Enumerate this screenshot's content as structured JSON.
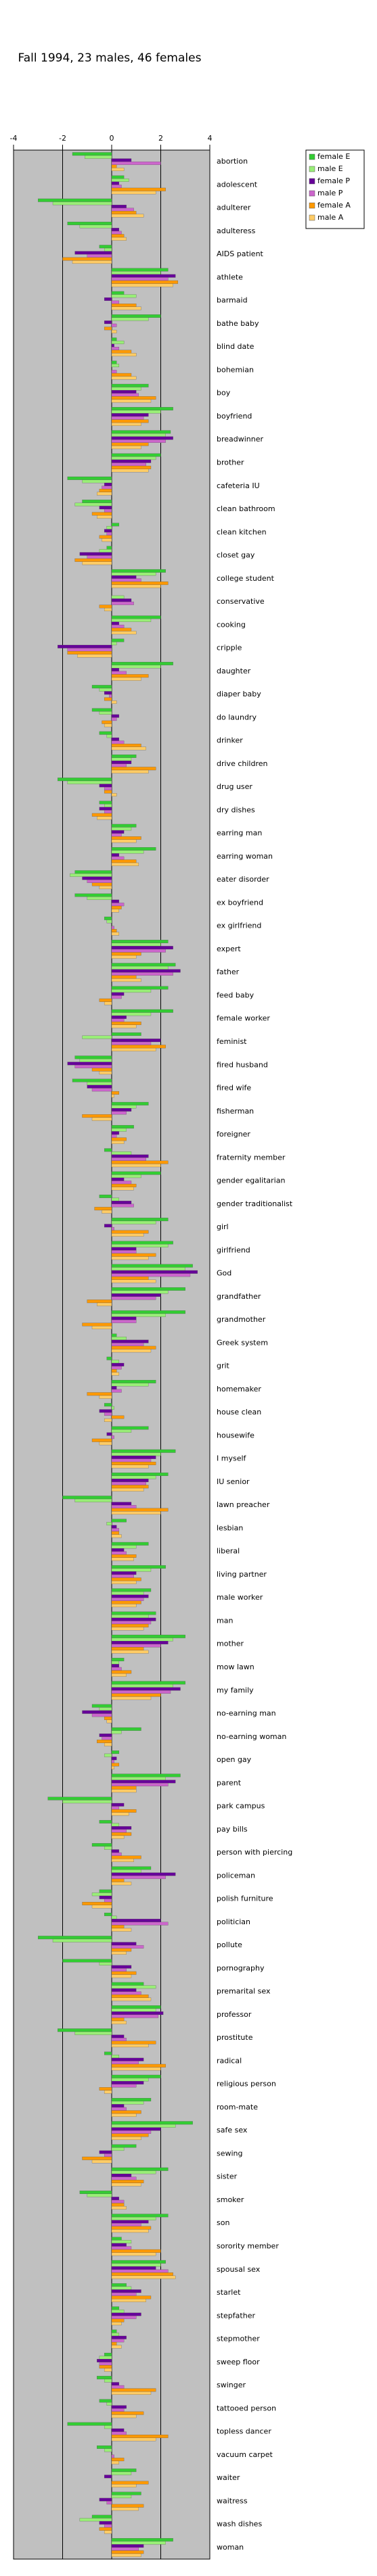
{
  "chart_data": {
    "type": "hbar",
    "title": "Fall 1994, 23 males, 46 females",
    "categories": [
      "abortion",
      "adolescent",
      "adulterer",
      "adulteress",
      "AIDS patient",
      "athlete",
      "barmaid",
      "bathe baby",
      "blind date",
      "bohemian",
      "boy",
      "boyfriend",
      "breadwinner",
      "brother",
      "cafeteria IU",
      "clean bathroom",
      "clean kitchen",
      "closet gay",
      "college student",
      "conservative",
      "cooking",
      "cripple",
      "daughter",
      "diaper baby",
      "do laundry",
      "drinker",
      "drive children",
      "drug user",
      "dry dishes",
      "earring man",
      "earring woman",
      "eater disorder",
      "ex boyfriend",
      "ex girlfriend",
      "expert",
      "father",
      "feed baby",
      "female worker",
      "feminist",
      "fired husband",
      "fired wife",
      "fisherman",
      "foreigner",
      "fraternity member",
      "gender egalitarian",
      "gender traditionalist",
      "girl",
      "girlfriend",
      "God",
      "grandfather",
      "grandmother",
      "Greek system",
      "grit",
      "homemaker",
      "house clean",
      "housewife",
      "I myself",
      "IU senior",
      "lawn preacher",
      "lesbian",
      "liberal",
      "living partner",
      "male worker",
      "man",
      "mother",
      "mow lawn",
      "my family",
      "no-earning man",
      "no-earning woman",
      "open gay",
      "parent",
      "park campus",
      "pay bills",
      "person with piercing",
      "policeman",
      "polish furniture",
      "politician",
      "pollute",
      "pornography",
      "premarital sex",
      "professor",
      "prostitute",
      "radical",
      "religious person",
      "room-mate",
      "safe sex",
      "sewing",
      "sister",
      "smoker",
      "son",
      "sorority member",
      "spousal sex",
      "starlet",
      "stepfather",
      "stepmother",
      "sweep floor",
      "swinger",
      "tattooed person",
      "topless dancer",
      "vacuum carpet",
      "waiter",
      "waitress",
      "wash dishes",
      "woman"
    ],
    "series": [
      {
        "name": "female E",
        "color": "#33cc33",
        "values": [
          -1.6,
          0.5,
          -3.0,
          -1.8,
          -0.5,
          2.3,
          0.5,
          2.0,
          0.2,
          0.2,
          1.5,
          2.5,
          2.4,
          2.0,
          -1.8,
          -1.2,
          0.3,
          -0.2,
          2.2,
          0.0,
          2.0,
          0.5,
          2.5,
          -0.8,
          -0.8,
          -0.5,
          1.0,
          -2.2,
          -0.5,
          1.0,
          1.8,
          -1.5,
          -1.5,
          -0.3,
          2.3,
          2.6,
          2.3,
          2.5,
          1.2,
          -1.5,
          -1.6,
          1.5,
          0.9,
          -0.3,
          2.0,
          -0.5,
          2.3,
          2.5,
          3.3,
          3.0,
          3.0,
          0.2,
          -0.2,
          1.8,
          -0.3,
          1.5,
          2.6,
          2.3,
          -2.0,
          0.6,
          1.5,
          2.2,
          1.6,
          1.8,
          3.0,
          0.5,
          3.0,
          -0.8,
          1.2,
          0.3,
          2.8,
          -2.6,
          -0.5,
          -0.8,
          1.6,
          -0.5,
          -0.3,
          -3.0,
          -2.0,
          1.3,
          2.0,
          -2.2,
          -0.3,
          2.0,
          1.6,
          3.3,
          1.0,
          2.3,
          -1.3,
          2.3,
          0.4,
          2.2,
          0.6,
          0.3,
          0.2,
          -0.3,
          -0.6,
          -0.5,
          -1.8,
          -0.6,
          1.0,
          1.2,
          -0.8,
          2.5
        ]
      },
      {
        "name": "male E",
        "color": "#99ee77",
        "values": [
          -1.1,
          0.7,
          -2.4,
          -1.3,
          -0.3,
          2.0,
          1.0,
          1.5,
          0.5,
          0.3,
          1.2,
          2.0,
          2.2,
          1.8,
          -1.2,
          -1.5,
          -0.2,
          -0.5,
          1.8,
          0.5,
          1.6,
          0.2,
          2.0,
          -0.5,
          -0.5,
          -0.2,
          0.8,
          -1.8,
          -0.3,
          0.8,
          1.3,
          -1.7,
          -1.0,
          -0.2,
          2.0,
          2.3,
          1.6,
          1.6,
          -1.2,
          -1.3,
          -1.0,
          1.0,
          0.6,
          0.8,
          1.2,
          0.3,
          1.8,
          2.3,
          3.0,
          2.3,
          2.2,
          0.6,
          0.3,
          1.5,
          0.1,
          0.8,
          2.0,
          1.8,
          -1.5,
          -0.2,
          1.0,
          1.6,
          1.3,
          1.5,
          2.5,
          0.3,
          2.5,
          -0.5,
          0.4,
          -0.3,
          2.2,
          -2.0,
          0.3,
          -0.3,
          1.2,
          -0.8,
          0.2,
          -2.4,
          -0.5,
          1.8,
          1.8,
          -1.5,
          0.3,
          1.5,
          1.3,
          2.6,
          0.5,
          1.8,
          -1.0,
          1.8,
          0.8,
          2.0,
          0.8,
          0.5,
          0.3,
          -0.5,
          -0.3,
          -0.2,
          -0.3,
          -0.3,
          0.8,
          0.8,
          -1.3,
          2.2
        ]
      },
      {
        "name": "female P",
        "color": "#660099",
        "values": [
          0.8,
          0.3,
          0.6,
          0.3,
          -1.5,
          2.6,
          -0.3,
          -0.3,
          0.1,
          0.0,
          1.0,
          1.5,
          2.5,
          1.6,
          -0.3,
          -0.5,
          -0.3,
          -1.3,
          1.0,
          0.8,
          0.3,
          -2.2,
          0.3,
          -0.3,
          0.3,
          0.3,
          0.8,
          -0.5,
          -0.5,
          0.5,
          0.3,
          -1.2,
          0.3,
          0.0,
          2.5,
          2.8,
          0.5,
          0.6,
          2.0,
          -1.8,
          -1.0,
          0.8,
          0.3,
          1.5,
          0.5,
          0.8,
          -0.3,
          1.0,
          3.5,
          2.0,
          1.0,
          1.5,
          0.5,
          0.2,
          -0.5,
          -0.2,
          1.8,
          1.5,
          0.8,
          0.2,
          0.5,
          1.0,
          1.5,
          1.8,
          2.3,
          0.3,
          2.8,
          -1.2,
          -0.5,
          0.2,
          2.6,
          0.5,
          0.8,
          0.3,
          2.6,
          -0.5,
          2.0,
          1.0,
          0.8,
          1.0,
          2.1,
          0.5,
          1.3,
          1.3,
          0.5,
          2.0,
          -0.5,
          0.8,
          0.3,
          1.5,
          0.6,
          1.8,
          1.2,
          1.2,
          0.6,
          -0.6,
          0.3,
          0.6,
          0.5,
          0.0,
          -0.3,
          -0.5,
          -0.5,
          1.3
        ]
      },
      {
        "name": "male P",
        "color": "#cc66cc",
        "values": [
          2.0,
          0.4,
          0.9,
          0.4,
          -1.0,
          2.3,
          0.3,
          0.2,
          0.3,
          0.2,
          1.1,
          1.3,
          2.2,
          1.4,
          -0.4,
          -0.3,
          -0.2,
          -1.0,
          1.2,
          0.9,
          0.5,
          -1.8,
          0.6,
          -0.1,
          0.2,
          0.5,
          0.6,
          -0.3,
          -0.3,
          0.4,
          0.5,
          -1.0,
          0.5,
          0.1,
          2.2,
          2.5,
          0.4,
          0.5,
          1.6,
          -1.5,
          -0.8,
          0.6,
          0.2,
          1.4,
          0.8,
          0.9,
          0.1,
          1.0,
          3.2,
          1.8,
          1.0,
          1.3,
          0.4,
          0.4,
          -0.3,
          0.1,
          1.6,
          1.4,
          1.0,
          0.3,
          0.6,
          0.9,
          1.3,
          1.6,
          2.0,
          0.4,
          2.4,
          -0.8,
          -0.4,
          0.1,
          2.3,
          0.3,
          0.6,
          0.4,
          2.2,
          -0.3,
          2.3,
          1.3,
          0.6,
          1.2,
          1.9,
          0.6,
          1.1,
          1.0,
          0.6,
          1.6,
          -0.3,
          1.0,
          0.5,
          1.2,
          0.8,
          2.3,
          1.0,
          1.0,
          0.5,
          -0.5,
          0.5,
          0.5,
          0.6,
          0.1,
          0.0,
          -0.2,
          -0.3,
          1.1
        ]
      },
      {
        "name": "female A",
        "color": "#ff9900",
        "values": [
          0.2,
          2.2,
          1.0,
          0.5,
          -2.0,
          2.7,
          1.0,
          -0.3,
          0.8,
          0.8,
          1.8,
          1.5,
          1.5,
          1.6,
          -0.5,
          -0.8,
          -0.5,
          -1.5,
          2.3,
          -0.5,
          0.8,
          -1.8,
          1.5,
          -0.3,
          -0.4,
          1.2,
          1.8,
          -0.3,
          -0.8,
          1.2,
          1.0,
          -0.8,
          0.4,
          0.2,
          1.2,
          1.0,
          -0.5,
          1.2,
          2.2,
          -0.8,
          0.3,
          -1.2,
          0.6,
          2.3,
          1.0,
          -0.7,
          1.5,
          1.8,
          1.5,
          -1.0,
          -1.2,
          1.8,
          0.2,
          -1.0,
          0.5,
          -0.8,
          1.8,
          1.5,
          2.3,
          0.3,
          1.0,
          1.2,
          1.2,
          1.5,
          1.3,
          0.8,
          2.0,
          -0.3,
          -0.6,
          0.3,
          1.0,
          1.0,
          0.8,
          1.2,
          0.5,
          -1.2,
          0.5,
          0.8,
          1.0,
          1.5,
          0.5,
          1.8,
          2.2,
          -0.5,
          1.2,
          1.5,
          -1.2,
          1.3,
          0.5,
          1.6,
          2.0,
          2.5,
          1.6,
          0.5,
          0.2,
          -0.5,
          1.8,
          1.3,
          2.3,
          0.5,
          1.5,
          1.3,
          -0.5,
          1.3
        ]
      },
      {
        "name": "male A",
        "color": "#ffcc66",
        "values": [
          0.5,
          1.8,
          1.3,
          0.6,
          -1.6,
          2.5,
          1.2,
          0.2,
          1.0,
          1.0,
          1.6,
          1.2,
          1.2,
          1.5,
          -0.6,
          -0.6,
          -0.4,
          -1.2,
          2.0,
          -0.3,
          1.0,
          -1.4,
          1.2,
          0.2,
          -0.3,
          1.4,
          1.5,
          0.2,
          -0.6,
          1.0,
          1.1,
          -0.5,
          0.3,
          0.3,
          1.0,
          1.2,
          -0.3,
          1.0,
          1.8,
          -0.5,
          0.1,
          -0.8,
          0.5,
          2.0,
          0.9,
          -0.4,
          1.3,
          1.5,
          1.8,
          -0.6,
          -0.8,
          1.6,
          0.3,
          -0.5,
          -0.3,
          -0.5,
          1.5,
          1.3,
          2.0,
          0.4,
          0.9,
          1.0,
          1.0,
          1.3,
          1.5,
          0.6,
          1.6,
          -0.2,
          -0.3,
          0.1,
          1.0,
          0.7,
          0.5,
          0.9,
          0.8,
          -0.8,
          0.8,
          0.6,
          0.8,
          1.6,
          0.6,
          1.5,
          2.0,
          -0.3,
          1.0,
          1.2,
          -0.8,
          1.2,
          0.6,
          1.5,
          1.8,
          2.6,
          1.4,
          0.4,
          0.4,
          -0.3,
          1.6,
          1.0,
          1.8,
          0.3,
          1.0,
          1.1,
          -0.3,
          1.2
        ]
      }
    ],
    "xlim": [
      -4,
      4
    ],
    "xticks": [
      -4,
      -2,
      0,
      2,
      4
    ],
    "grid": true,
    "legend": "top-right",
    "plot_color": "#c0c0c0"
  }
}
